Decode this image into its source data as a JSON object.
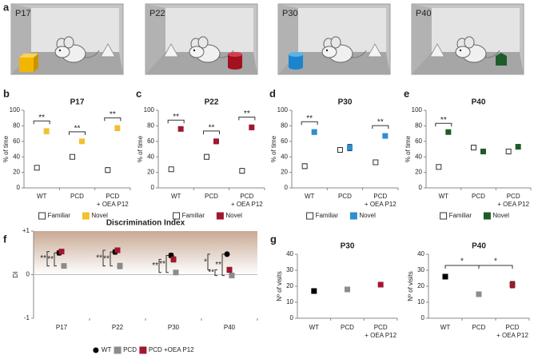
{
  "illustration": {
    "panel": "a",
    "ages": [
      "P17",
      "P22",
      "P30",
      "P40"
    ]
  },
  "chart_data": [
    {
      "type": "scatter",
      "panel": "b",
      "title": "P17",
      "y_label": "% of time",
      "categories": [
        "WT",
        "PCD",
        "PCD\n+ OEA P12"
      ],
      "series": [
        {
          "name": "Familiar",
          "color": "#ffffff",
          "values": [
            26,
            40,
            23
          ],
          "errors": [
            2,
            1,
            3
          ]
        },
        {
          "name": "Novel",
          "color": "#f2c12e",
          "values": [
            73,
            60,
            77
          ],
          "errors": [
            3,
            2,
            3
          ]
        }
      ],
      "ylim": [
        0,
        100
      ],
      "yticks": [
        0,
        20,
        40,
        60,
        80,
        100
      ],
      "annotations": [
        "**",
        "**",
        "**"
      ]
    },
    {
      "type": "scatter",
      "panel": "c",
      "title": "P22",
      "y_label": "% of time",
      "categories": [
        "WT",
        "PCD",
        "PCD\n+ OEA P12"
      ],
      "series": [
        {
          "name": "Familiar",
          "color": "#ffffff",
          "values": [
            24,
            40,
            22
          ],
          "errors": [
            1,
            3,
            3
          ]
        },
        {
          "name": "Novel",
          "color": "#a0182f",
          "values": [
            76,
            60,
            78
          ],
          "errors": [
            1,
            3,
            3
          ]
        }
      ],
      "ylim": [
        0,
        100
      ],
      "yticks": [
        0,
        20,
        40,
        60,
        80,
        100
      ],
      "annotations": [
        "**",
        "**",
        "**"
      ]
    },
    {
      "type": "scatter",
      "panel": "d",
      "title": "P30",
      "y_label": "% of time",
      "categories": [
        "WT",
        "PCD",
        "PCD\n+ OEA P12"
      ],
      "series": [
        {
          "name": "Familiar",
          "color": "#ffffff",
          "values": [
            28,
            49,
            33
          ],
          "errors": [
            3,
            3,
            3
          ]
        },
        {
          "name": "Novel",
          "color": "#2e8fd0",
          "values": [
            72,
            52,
            67
          ],
          "errors": [
            3,
            4,
            3
          ]
        }
      ],
      "ylim": [
        0,
        100
      ],
      "yticks": [
        0,
        20,
        40,
        60,
        80,
        100
      ],
      "annotations": [
        "**",
        null,
        "**"
      ]
    },
    {
      "type": "scatter",
      "panel": "e",
      "title": "P40",
      "y_label": "% of time",
      "categories": [
        "WT",
        "PCD",
        "PCD\n+ OEA P12"
      ],
      "series": [
        {
          "name": "Familiar",
          "color": "#ffffff",
          "values": [
            27,
            52,
            47
          ],
          "errors": [
            1,
            3,
            3
          ]
        },
        {
          "name": "Novel",
          "color": "#1e5c2a",
          "values": [
            72,
            47,
            53
          ],
          "errors": [
            1,
            3,
            3
          ]
        }
      ],
      "ylim": [
        0,
        100
      ],
      "yticks": [
        0,
        20,
        40,
        60,
        80,
        100
      ],
      "annotations": [
        "**",
        null,
        null
      ]
    },
    {
      "type": "scatter",
      "panel": "f",
      "title": "Discrimination Index",
      "y_label": "DI",
      "categories": [
        "P17",
        "P22",
        "P30",
        "P40"
      ],
      "series": [
        {
          "name": "WT",
          "color": "#000000",
          "values": [
            0.5,
            0.52,
            0.44,
            0.47
          ],
          "errors": [
            0.05,
            0.05,
            0.05,
            0.01
          ]
        },
        {
          "name": "PCD",
          "color": "#8c8c8c",
          "values": [
            0.2,
            0.2,
            0.05,
            -0.02
          ],
          "errors": [
            0.02,
            0.06,
            0.02,
            0.05
          ]
        },
        {
          "name": "PCD +OEA P12",
          "color": "#a0182f",
          "values": [
            0.53,
            0.56,
            0.35,
            0.11
          ],
          "errors": [
            0.05,
            0.05,
            0.06,
            0.06
          ]
        }
      ],
      "ylim": [
        -1,
        1
      ],
      "yticks": [
        -1,
        0,
        {
          "value": 1,
          "label": "+1"
        }
      ],
      "annotations": [
        [
          "**",
          "**"
        ],
        [
          "**",
          "**"
        ],
        [
          "**",
          "**"
        ],
        [
          "**",
          "**",
          "*"
        ]
      ]
    },
    {
      "type": "scatter",
      "panel": "g",
      "title": "P30",
      "y_label": "Nº of visits",
      "categories": [
        "WT",
        "PCD",
        "PCD\n+ OEA P12"
      ],
      "series": [
        {
          "colors": [
            "#000000",
            "#8c8c8c",
            "#a0182f"
          ],
          "values": [
            17,
            18,
            21
          ],
          "errors": [
            0.5,
            1.5,
            1.5
          ]
        }
      ],
      "ylim": [
        0,
        40
      ],
      "yticks": [
        0,
        10,
        20,
        30,
        40
      ]
    },
    {
      "type": "scatter",
      "title": "P40",
      "y_label": "Nº of visits",
      "categories": [
        "WT",
        "PCD",
        "PCD\n+ OEA P12"
      ],
      "series": [
        {
          "colors": [
            "#000000",
            "#8c8c8c",
            "#a0182f"
          ],
          "values": [
            26,
            15,
            21
          ],
          "errors": [
            1.5,
            1.5,
            2
          ]
        }
      ],
      "ylim": [
        0,
        40
      ],
      "yticks": [
        0,
        10,
        20,
        30,
        40
      ],
      "annotations": [
        "*",
        "*"
      ]
    }
  ]
}
